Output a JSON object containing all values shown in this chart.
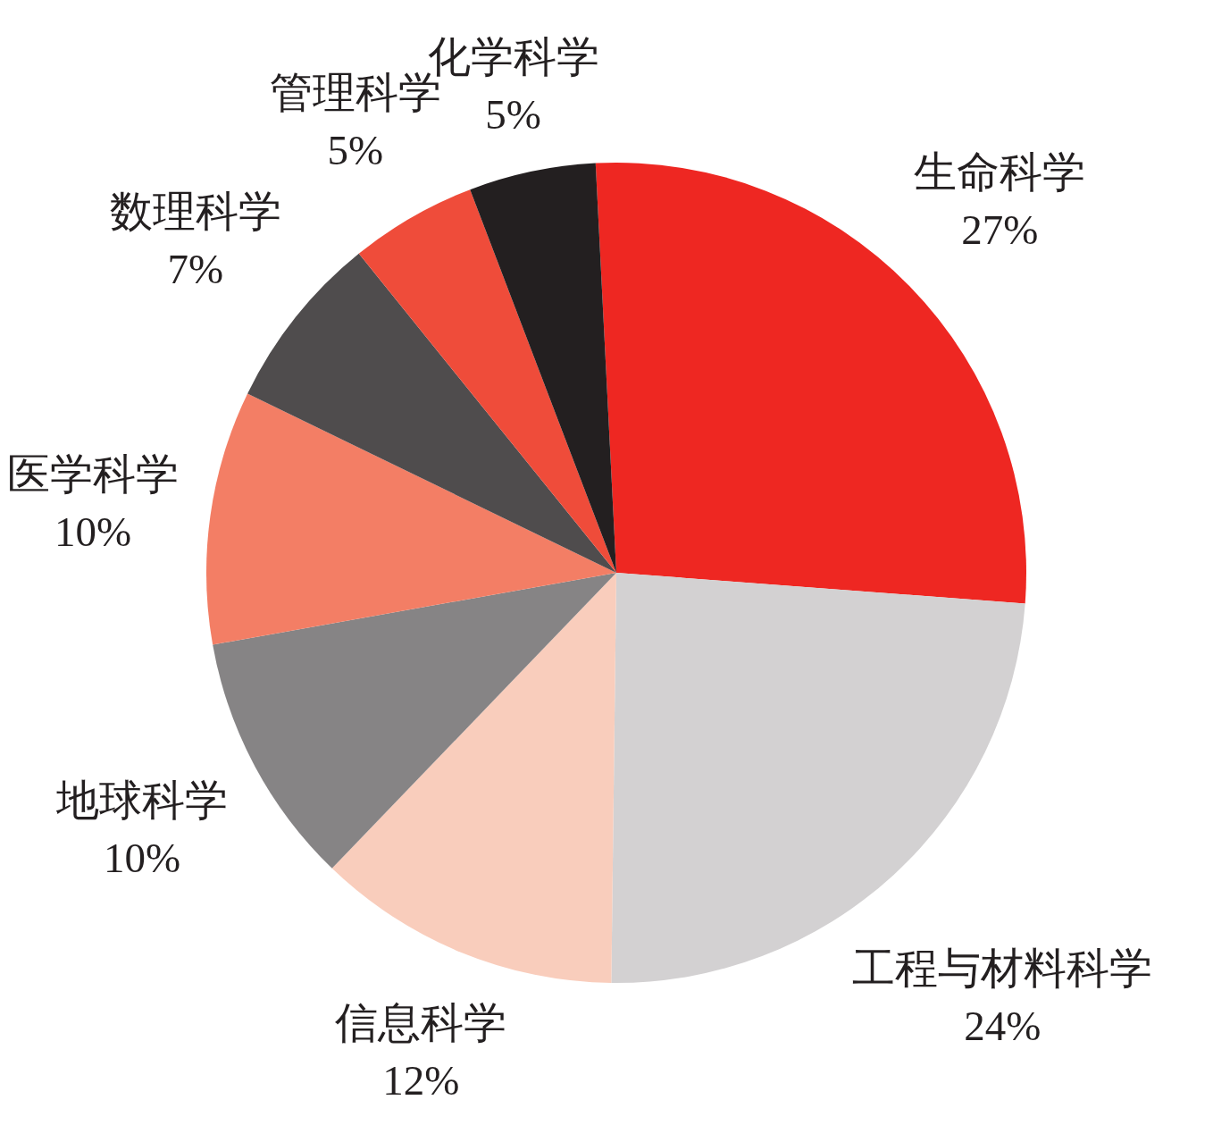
{
  "chart_data": {
    "type": "pie",
    "categories": [
      "生命科学",
      "工程与材料科学",
      "信息科学",
      "地球科学",
      "医学科学",
      "数理科学",
      "管理科学",
      "化学科学"
    ],
    "values": [
      27,
      24,
      12,
      10,
      10,
      7,
      5,
      5
    ],
    "value_labels": [
      "27%",
      "24%",
      "12%",
      "10%",
      "10%",
      "7%",
      "5%",
      "5%"
    ],
    "colors": [
      "#ee2722",
      "#d3d1d2",
      "#f9cdbc",
      "#868485",
      "#f37e65",
      "#4f4c4d",
      "#ef4c3a",
      "#231f20"
    ]
  }
}
